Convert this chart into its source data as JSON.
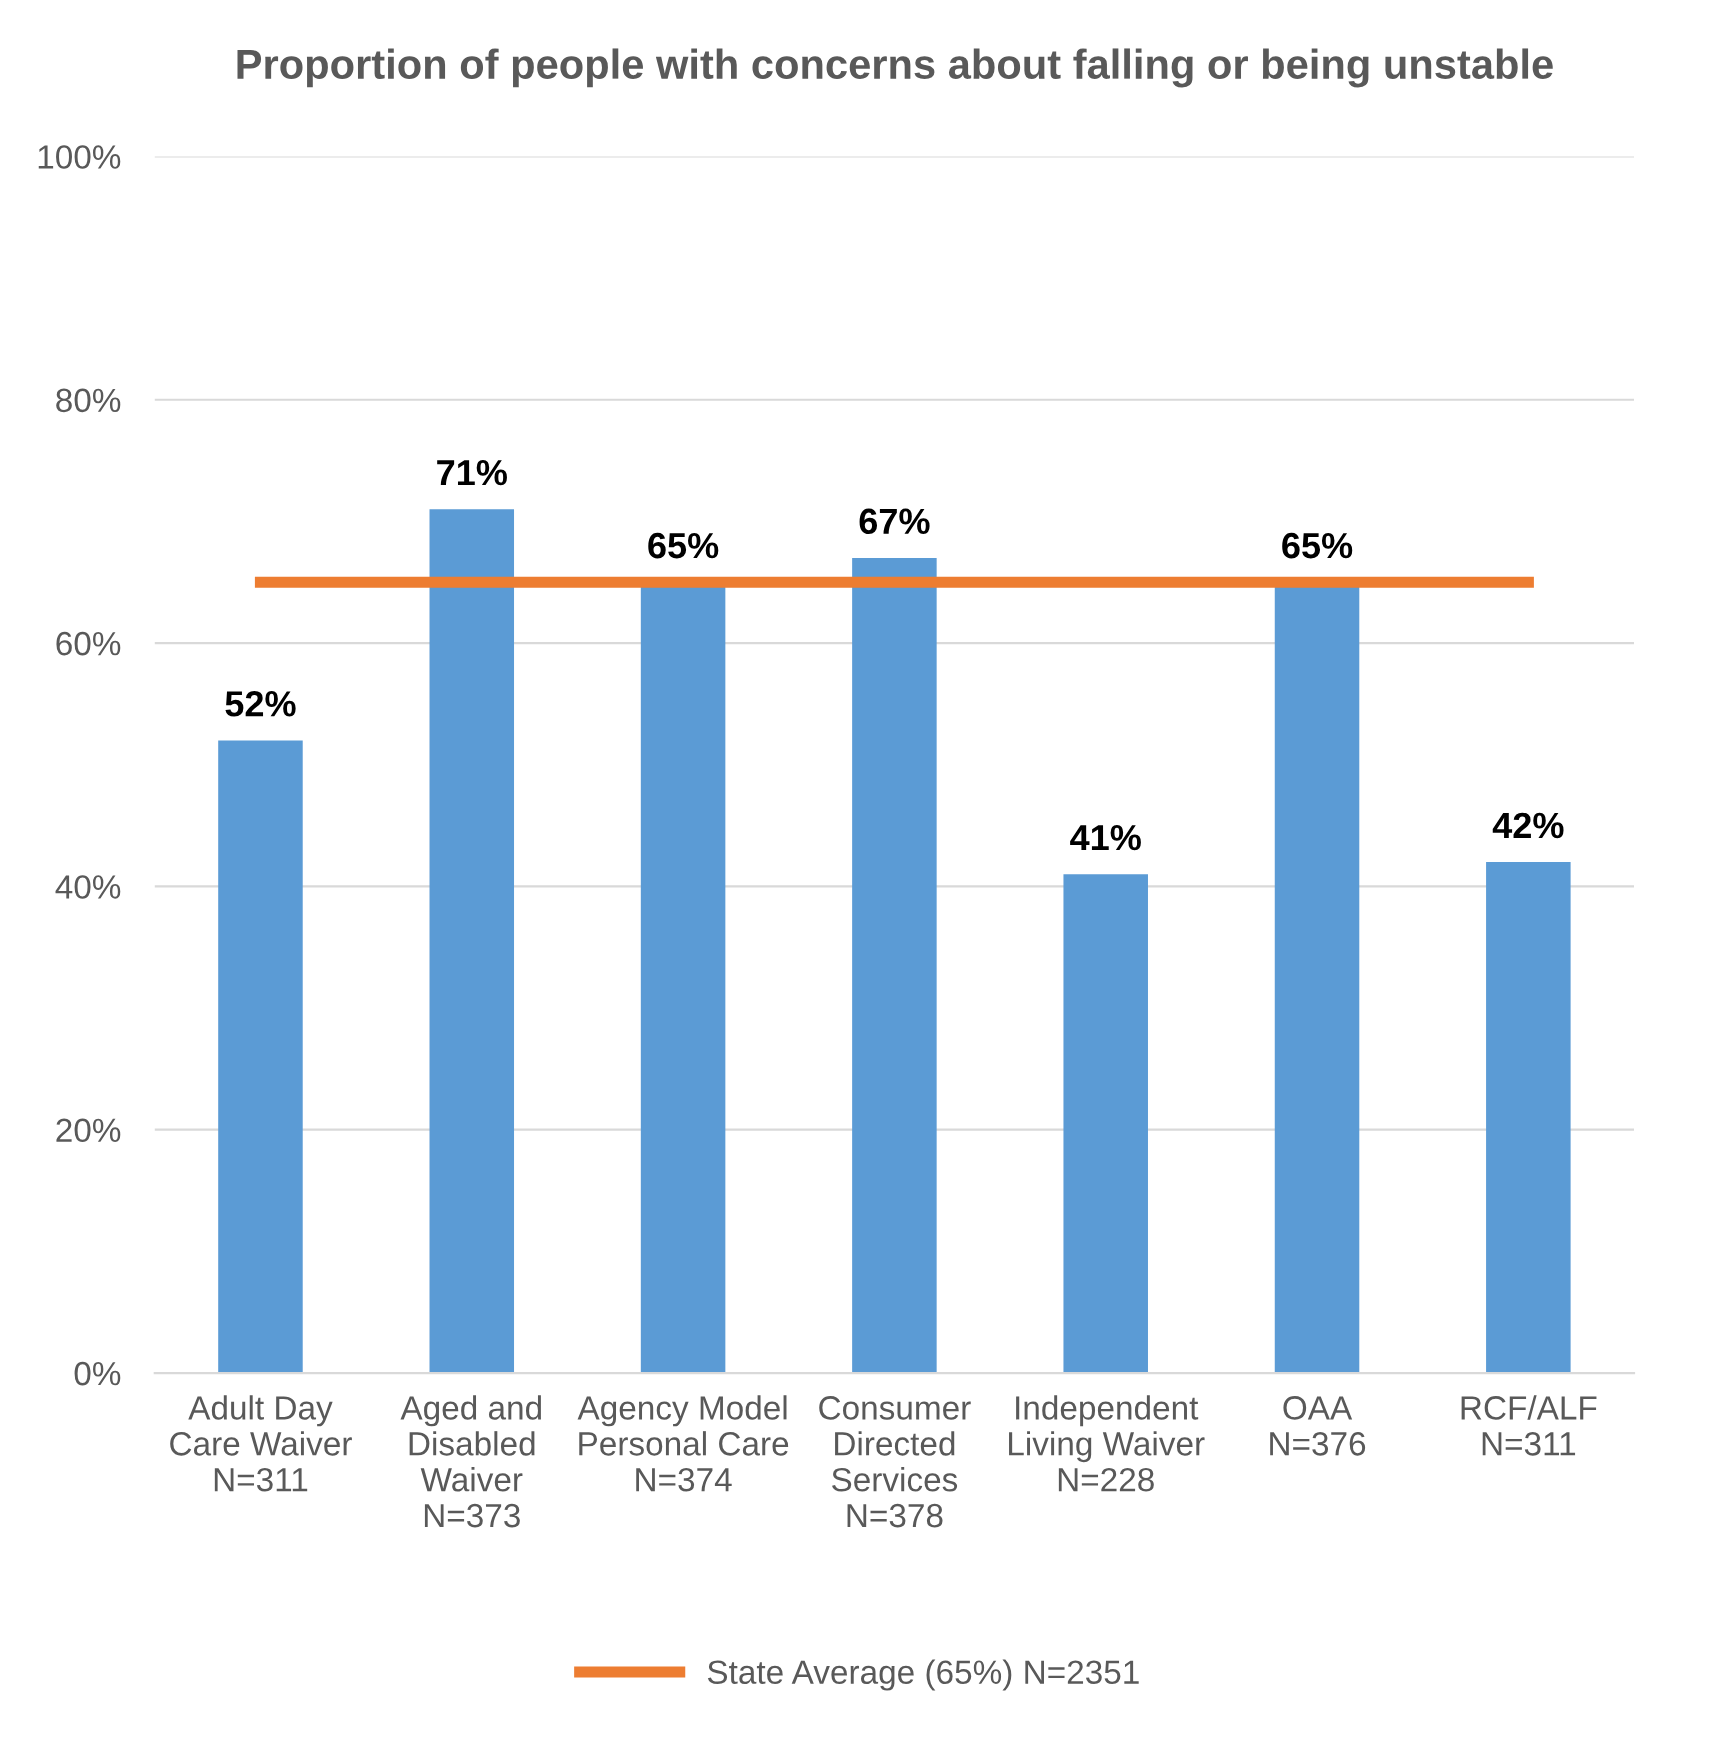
{
  "chart_data": {
    "type": "bar",
    "title": "Proportion of people with concerns about falling or being unstable",
    "categories": [
      "Adult Day\nCare Waiver\nN=311",
      "Aged and\nDisabled\nWaiver\nN=373",
      "Agency Model\nPersonal Care\nN=374",
      "Consumer\nDirected\nServices\nN=378",
      "Independent\nLiving Waiver\nN=228",
      "OAA\nN=376",
      "RCF/ALF\nN=311"
    ],
    "series": [
      {
        "color": "#5b9bd5",
        "values": [
          52,
          71,
          65,
          67,
          41,
          65,
          42
        ],
        "value_labels": [
          "52%",
          "71%",
          "65%",
          "67%",
          "41%",
          "65%",
          "42%"
        ]
      },
      {
        "type": "line",
        "name": "State Average (65%) N=2351",
        "color": "#ed7d31",
        "values": [
          65,
          65,
          65,
          65,
          65,
          65,
          65
        ]
      }
    ],
    "ylim": [
      0,
      100
    ],
    "yticks": [
      {
        "value": 0,
        "label": "0%"
      },
      {
        "value": 20,
        "label": "20%"
      },
      {
        "value": 40,
        "label": "40%"
      },
      {
        "value": 60,
        "label": "60%"
      },
      {
        "value": 80,
        "label": "80%"
      },
      {
        "value": 100,
        "label": "100%"
      }
    ],
    "grid": "y",
    "legend": "bottom"
  }
}
